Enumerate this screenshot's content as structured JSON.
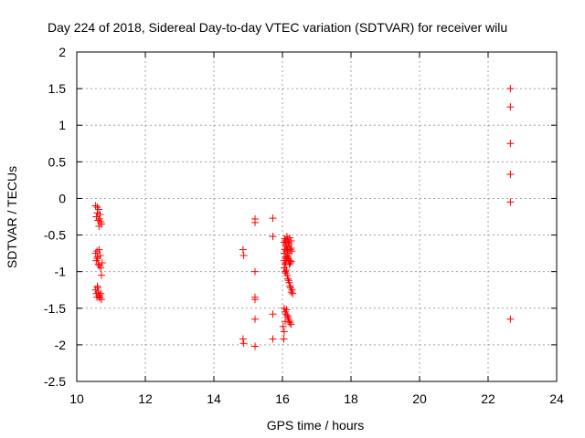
{
  "chart_data": {
    "type": "scatter",
    "title": "Day 224 of 2018, Sidereal Day-to-day VTEC variation (SDTVAR) for receiver wilu",
    "xlabel": "GPS time / hours",
    "ylabel": "SDTVAR / TECUs",
    "xlim": [
      10,
      24
    ],
    "ylim": [
      -2.5,
      2
    ],
    "grid": true,
    "xticks": [
      10,
      12,
      14,
      16,
      18,
      20,
      22,
      24
    ],
    "xtick_labels": [
      "10",
      "12",
      "14",
      "16",
      "18",
      "20",
      "22",
      "24"
    ],
    "yticks": [
      -2.5,
      -2,
      -1.5,
      -1,
      -0.5,
      0,
      0.5,
      1,
      1.5,
      2
    ],
    "ytick_labels": [
      "-2.5",
      "-2",
      "-1.5",
      "-1",
      "-0.5",
      "0",
      "0.5",
      "1",
      "1.5",
      "2"
    ],
    "marker": "+",
    "color": "#ff0000",
    "series": [
      {
        "name": "SDTVAR",
        "x": [
          10.55,
          10.57,
          10.6,
          10.62,
          10.64,
          10.66,
          10.68,
          10.7,
          10.72,
          10.6,
          10.65,
          10.55,
          10.57,
          10.59,
          10.61,
          10.63,
          10.65,
          10.68,
          10.7,
          10.72,
          10.74,
          10.6,
          10.66,
          10.55,
          10.57,
          10.59,
          10.61,
          10.63,
          10.65,
          10.67,
          10.7,
          10.72,
          10.6,
          10.66,
          14.85,
          14.87,
          14.85,
          14.87,
          15.2,
          15.2,
          15.2,
          15.2,
          15.2,
          15.2,
          15.2,
          15.72,
          15.72,
          15.72,
          15.72,
          16.05,
          16.07,
          16.09,
          16.11,
          16.13,
          16.15,
          16.17,
          16.19,
          16.21,
          16.23,
          16.25,
          16.27,
          16.05,
          16.07,
          16.09,
          16.11,
          16.13,
          16.15,
          16.17,
          16.19,
          16.21,
          16.23,
          16.05,
          16.08,
          16.1,
          16.12,
          16.14,
          16.16,
          16.18,
          16.2,
          16.22,
          16.24,
          16.26,
          16.05,
          16.08,
          16.1,
          16.12,
          16.14,
          16.16,
          16.18,
          16.2,
          16.22,
          16.25,
          16.05,
          16.08,
          16.1,
          16.12,
          16.15,
          16.18,
          16.2,
          16.22,
          16.25,
          16.05,
          16.1,
          16.15,
          16.2,
          16.25,
          16.28,
          16.3,
          16.02,
          16.05,
          16.08,
          16.04,
          22.65,
          22.65,
          22.65,
          22.65,
          22.65,
          22.65
        ],
        "y": [
          -0.1,
          -0.25,
          -0.2,
          -0.3,
          -0.15,
          -0.28,
          -0.22,
          -0.32,
          -0.35,
          -0.12,
          -0.38,
          -0.75,
          -0.85,
          -0.72,
          -0.8,
          -0.9,
          -0.7,
          -0.78,
          -0.95,
          -1.05,
          -0.88,
          -0.82,
          -0.92,
          -1.25,
          -1.3,
          -1.35,
          -1.22,
          -1.28,
          -1.32,
          -1.36,
          -1.3,
          -1.38,
          -1.2,
          -1.34,
          -0.7,
          -0.78,
          -1.92,
          -1.98,
          -0.28,
          -0.33,
          -1.0,
          -1.35,
          -1.38,
          -1.65,
          -2.02,
          -0.27,
          -0.52,
          -1.58,
          -1.92,
          -0.6,
          -0.55,
          -0.58,
          -0.62,
          -0.52,
          -0.56,
          -0.6,
          -0.65,
          -0.54,
          -0.7,
          -0.68,
          -0.72,
          -0.75,
          -0.7,
          -0.8,
          -0.72,
          -0.68,
          -0.78,
          -0.82,
          -0.75,
          -0.85,
          -0.88,
          -0.95,
          -1.0,
          -1.02,
          -0.98,
          -1.05,
          -1.1,
          -1.12,
          -1.15,
          -1.2,
          -1.22,
          -1.28,
          -1.5,
          -1.55,
          -1.58,
          -1.52,
          -1.6,
          -1.62,
          -1.65,
          -1.68,
          -1.7,
          -1.72,
          -0.85,
          -0.9,
          -0.88,
          -0.82,
          -0.8,
          -0.85,
          -0.9,
          -0.88,
          -0.86,
          -0.6,
          -0.65,
          -0.7,
          -0.62,
          -0.58,
          -1.25,
          -1.3,
          -1.75,
          -1.82,
          -1.68,
          -1.92,
          1.5,
          1.25,
          0.75,
          0.33,
          -0.05,
          -1.65
        ]
      }
    ]
  }
}
